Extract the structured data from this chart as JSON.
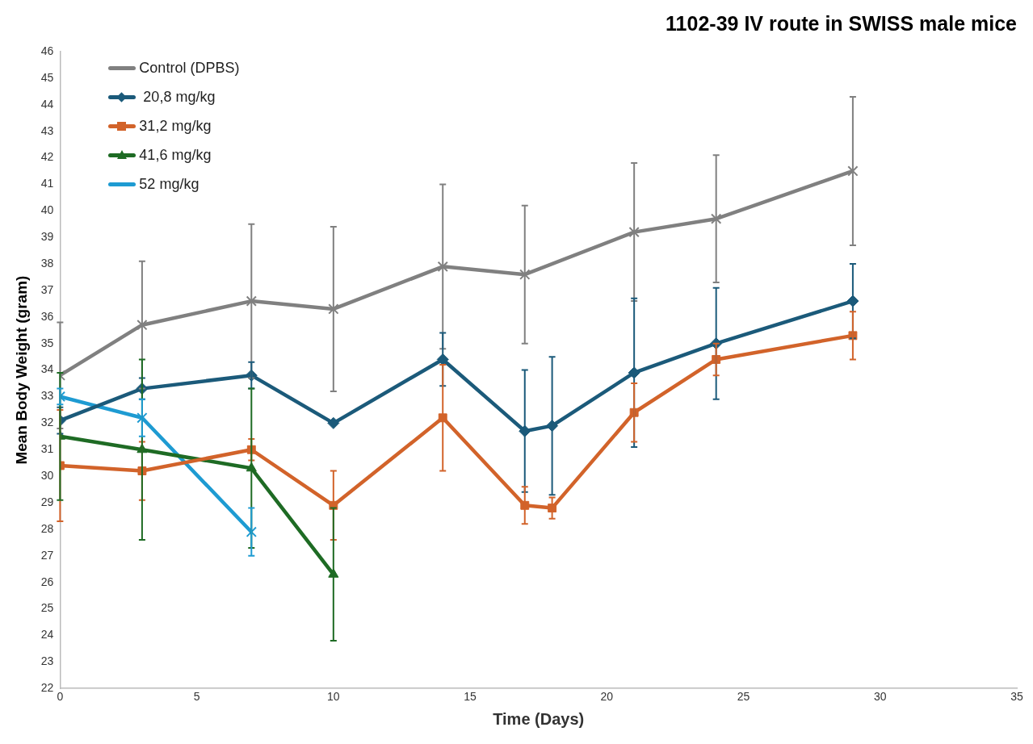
{
  "chart_data": {
    "type": "line",
    "title": "1102-39 IV route in SWISS male mice",
    "xlabel": "Time (Days)",
    "ylabel": "Mean Body Weight (gram)",
    "xlim": [
      0,
      35
    ],
    "xticks": [
      0,
      5,
      10,
      15,
      20,
      25,
      30,
      35
    ],
    "ylim": [
      22,
      46
    ],
    "yticks": [
      22,
      23,
      24,
      25,
      26,
      27,
      28,
      29,
      30,
      31,
      32,
      33,
      34,
      35,
      36,
      37,
      38,
      39,
      40,
      41,
      42,
      43,
      44,
      45,
      46
    ],
    "grid": false,
    "legend": "top left",
    "series": [
      {
        "name": "Control (DPBS)",
        "color": "#808080",
        "marker": "cross",
        "x": [
          0,
          3,
          7,
          10,
          14,
          17,
          21,
          24,
          29
        ],
        "values": [
          33.8,
          35.7,
          36.6,
          36.3,
          37.9,
          37.6,
          39.2,
          39.7,
          41.5
        ],
        "errors": [
          2.0,
          2.4,
          2.9,
          3.1,
          3.1,
          2.6,
          2.6,
          2.4,
          2.8
        ]
      },
      {
        "name": " 20,8 mg/kg",
        "color": "#1b5a7a",
        "marker": "diamond",
        "x": [
          0,
          3,
          7,
          10,
          14,
          17,
          18,
          21,
          24,
          29
        ],
        "values": [
          32.1,
          33.3,
          33.8,
          32.0,
          34.4,
          31.7,
          31.9,
          33.9,
          35.0,
          36.6
        ],
        "errors": [
          0.5,
          0.4,
          0.5,
          null,
          1.0,
          2.3,
          2.6,
          2.8,
          2.1,
          1.4
        ]
      },
      {
        "name": "31,2 mg/kg",
        "color": "#d2632a",
        "marker": "square",
        "x": [
          0,
          3,
          7,
          10,
          14,
          17,
          18,
          21,
          24,
          29
        ],
        "values": [
          30.4,
          30.2,
          31.0,
          28.9,
          32.2,
          28.9,
          28.8,
          32.4,
          34.4,
          35.3
        ],
        "errors": [
          2.1,
          1.1,
          0.4,
          1.3,
          2.0,
          0.7,
          0.4,
          1.1,
          0.6,
          0.9
        ]
      },
      {
        "name": "41,6 mg/kg",
        "color": "#1e6b24",
        "marker": "triangle",
        "x": [
          0,
          3,
          7,
          10
        ],
        "values": [
          31.5,
          31.0,
          30.3,
          26.3
        ],
        "errors": [
          2.4,
          3.4,
          3.0,
          2.5
        ]
      },
      {
        "name": "52 mg/kg",
        "color": "#1e9bd2",
        "marker": "cross",
        "x": [
          0,
          3,
          7
        ],
        "values": [
          33.0,
          32.2,
          27.9
        ],
        "errors": [
          0.3,
          0.7,
          0.9
        ]
      }
    ]
  }
}
